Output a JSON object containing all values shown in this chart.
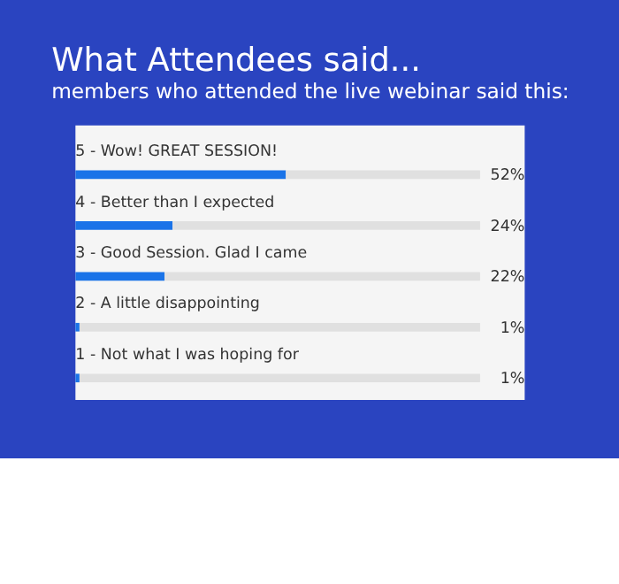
{
  "chart_data": {
    "type": "bar",
    "orientation": "horizontal",
    "stacked": true,
    "title": "What Attendees said...",
    "subtitle": "members who attended the live webinar said this:",
    "categories": [
      "5 - Wow! GREAT SESSION!",
      "4 - Better than I expected",
      "3 - Good Session. Glad I came",
      "2 - A little disappointing",
      "1 - Not what I was hoping for"
    ],
    "series": [
      {
        "color": "#1a73e8",
        "values": [
          52,
          24,
          22,
          1,
          1
        ],
        "value_labels": [
          "52%",
          "24%",
          "22%",
          "1%",
          "1%"
        ]
      },
      {
        "color": "#e0e0e0",
        "values": [
          48,
          76,
          78,
          99,
          99
        ]
      }
    ],
    "xlim": [
      0,
      100
    ],
    "grid": false
  }
}
